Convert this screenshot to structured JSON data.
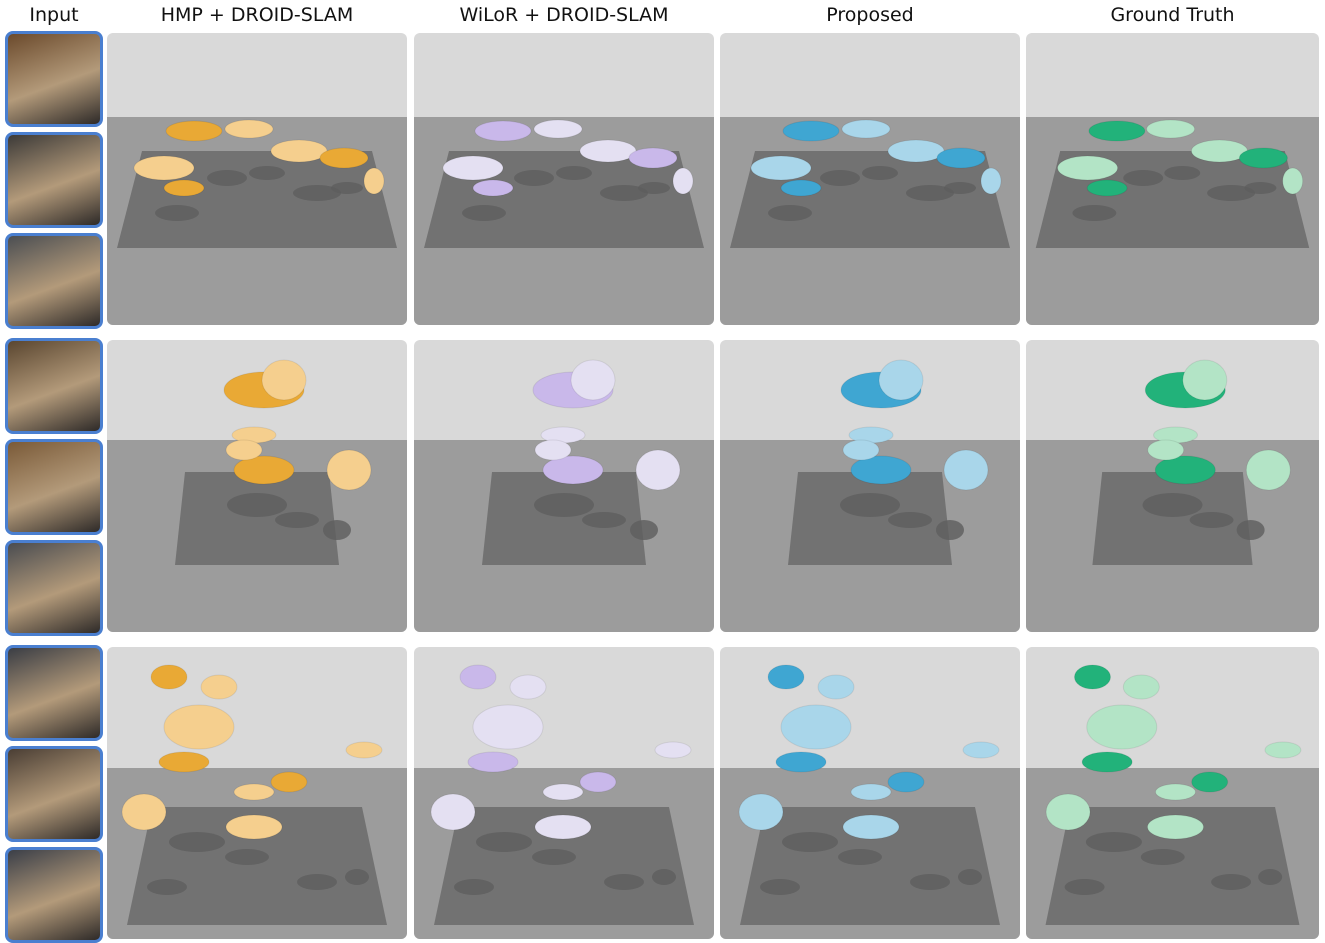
{
  "header": {
    "columns": [
      "Input",
      "HMP + DROID-SLAM",
      "WiLoR + DROID-SLAM",
      "Proposed",
      "Ground Truth"
    ]
  }
}
